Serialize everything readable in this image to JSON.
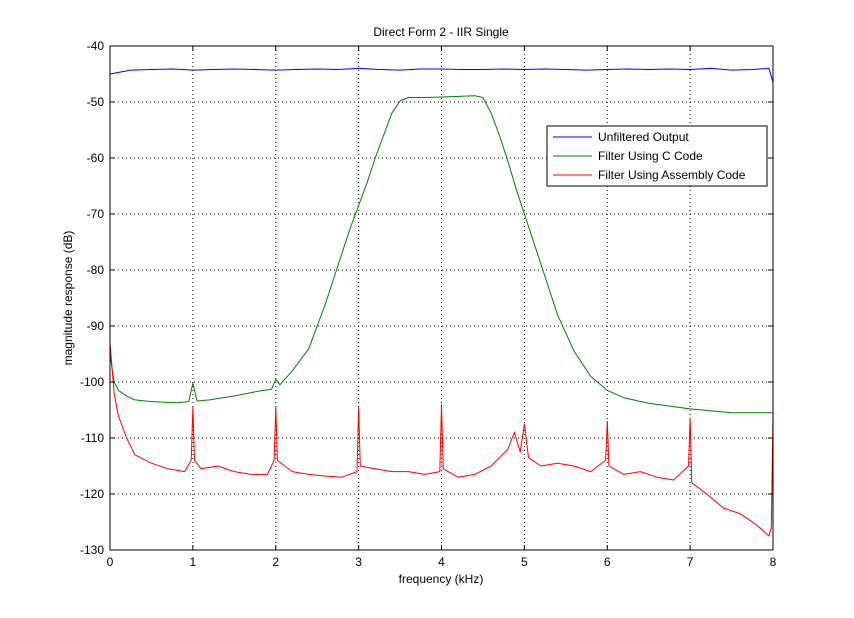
{
  "chart_data": {
    "type": "line",
    "title": "Direct Form 2 - IIR Single",
    "xlabel": "frequency (kHz)",
    "ylabel": "magnitude response (dB)",
    "xlim": [
      0,
      8
    ],
    "ylim": [
      -130,
      -40
    ],
    "xticks": [
      0,
      1,
      2,
      3,
      4,
      5,
      6,
      7,
      8
    ],
    "yticks": [
      -130,
      -120,
      -110,
      -100,
      -90,
      -80,
      -70,
      -60,
      -50,
      -40
    ],
    "grid": true,
    "legend_position": "top-right",
    "series": [
      {
        "name": "Unfiltered Output",
        "color": "#0000ff",
        "x": [
          0,
          0.25,
          0.5,
          0.75,
          1,
          1.25,
          1.5,
          1.75,
          2,
          2.25,
          2.5,
          2.75,
          3,
          3.25,
          3.5,
          3.75,
          4,
          4.25,
          4.5,
          4.75,
          5,
          5.25,
          5.5,
          5.75,
          6,
          6.25,
          6.5,
          6.75,
          7,
          7.25,
          7.5,
          7.75,
          7.95,
          8
        ],
        "y": [
          -45,
          -44.3,
          -44.2,
          -44.1,
          -44.3,
          -44.2,
          -44.1,
          -44.2,
          -44.3,
          -44.2,
          -44.1,
          -44.2,
          -44.0,
          -44.2,
          -44.3,
          -44.1,
          -44.1,
          -44.2,
          -44.2,
          -44.1,
          -44.2,
          -44.1,
          -44.2,
          -44.3,
          -44.2,
          -44.1,
          -44.2,
          -44.1,
          -44.2,
          -44.0,
          -44.3,
          -44.2,
          -44.0,
          -46.5
        ]
      },
      {
        "name": "Filter Using C Code",
        "color": "#008000",
        "x": [
          0,
          0.05,
          0.1,
          0.2,
          0.3,
          0.5,
          0.8,
          0.95,
          1,
          1.05,
          1.2,
          1.5,
          1.8,
          1.95,
          2,
          2.05,
          2.2,
          2.4,
          2.6,
          2.8,
          2.9,
          3,
          3.1,
          3.2,
          3.3,
          3.4,
          3.5,
          3.6,
          3.8,
          4,
          4.2,
          4.4,
          4.5,
          4.6,
          4.7,
          4.8,
          4.9,
          5,
          5.1,
          5.2,
          5.4,
          5.6,
          5.8,
          6,
          6.2,
          6.5,
          7,
          7.5,
          8
        ],
        "y": [
          -95,
          -100,
          -101.5,
          -102.5,
          -103.2,
          -103.5,
          -103.7,
          -103.5,
          -100.2,
          -103.4,
          -103.2,
          -102.5,
          -101.6,
          -101.3,
          -99.5,
          -100.5,
          -98,
          -94,
          -86,
          -77,
          -72.5,
          -68.5,
          -64.5,
          -60,
          -56,
          -52,
          -49.8,
          -49.2,
          -49.2,
          -49.1,
          -49.0,
          -48.9,
          -49.2,
          -52,
          -56,
          -60.5,
          -65.5,
          -70,
          -74.5,
          -79,
          -88,
          -94.5,
          -99,
          -101.5,
          -102.8,
          -103.8,
          -104.8,
          -105.5,
          -105.5
        ]
      },
      {
        "name": "Filter Using Assembly Code",
        "color": "#ff0000",
        "x": [
          0,
          0.05,
          0.1,
          0.2,
          0.3,
          0.5,
          0.7,
          0.9,
          0.98,
          1,
          1.02,
          1.1,
          1.3,
          1.5,
          1.7,
          1.9,
          1.98,
          2,
          2.02,
          2.2,
          2.4,
          2.6,
          2.8,
          2.98,
          3,
          3.02,
          3.2,
          3.4,
          3.6,
          3.8,
          3.98,
          4,
          4.02,
          4.2,
          4.4,
          4.6,
          4.8,
          4.88,
          4.95,
          5,
          5.05,
          5.2,
          5.4,
          5.6,
          5.8,
          5.98,
          6,
          6.02,
          6.2,
          6.4,
          6.6,
          6.8,
          6.98,
          7,
          7.02,
          7.2,
          7.4,
          7.6,
          7.8,
          7.95,
          7.98,
          8
        ],
        "y": [
          -93,
          -102,
          -106,
          -110,
          -113,
          -114.5,
          -115.5,
          -116,
          -114,
          -104.5,
          -114,
          -115.5,
          -115,
          -116,
          -116.5,
          -116.5,
          -114,
          -104.5,
          -114,
          -116,
          -116.5,
          -116.8,
          -117,
          -116,
          -104.5,
          -115,
          -115.5,
          -116,
          -116,
          -116.5,
          -116,
          -104,
          -115.5,
          -117,
          -116.5,
          -115,
          -112,
          -109,
          -112.5,
          -107.5,
          -113.5,
          -115,
          -114.5,
          -115,
          -116,
          -114,
          -107,
          -115,
          -116.5,
          -116,
          -117,
          -117.5,
          -115,
          -106.5,
          -118,
          -120,
          -122.5,
          -123.5,
          -125.5,
          -127.5,
          -126,
          -106
        ]
      }
    ]
  }
}
